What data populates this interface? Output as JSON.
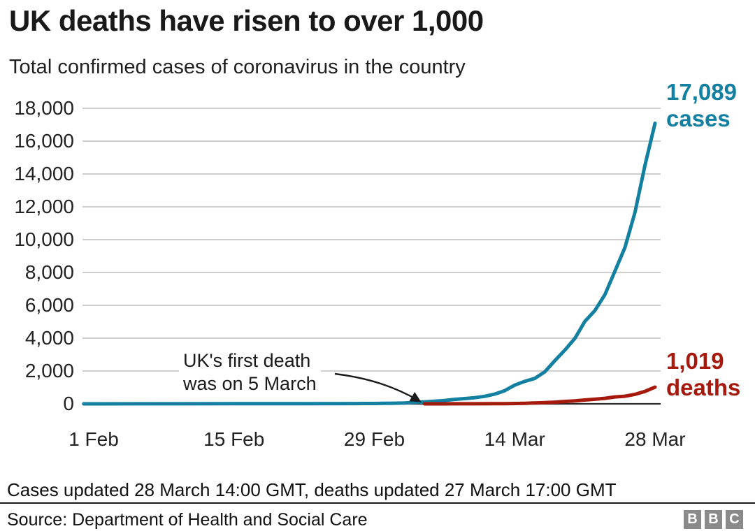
{
  "header": {
    "title": "UK deaths have risen to over 1,000",
    "subtitle": "Total confirmed cases of coronavirus in the country"
  },
  "chart_data": {
    "type": "line",
    "title": "UK deaths have risen to over 1,000",
    "subtitle": "Total confirmed cases of coronavirus in the country",
    "grid": "horizontal",
    "x_axis": {
      "tick_labels": [
        "1 Feb",
        "15 Feb",
        "29 Feb",
        "14 Mar",
        "28 Mar"
      ],
      "tick_days": [
        0,
        14,
        28,
        42,
        56
      ],
      "range_days": [
        0,
        56
      ]
    },
    "y_axis": {
      "tick_labels": [
        "18,000",
        "16,000",
        "14,000",
        "12,000",
        "10,000",
        "8,000",
        "6,000",
        "4,000",
        "2,000",
        "0"
      ],
      "tick_values": [
        18000,
        16000,
        14000,
        12000,
        10000,
        8000,
        6000,
        4000,
        2000,
        0
      ],
      "range": [
        0,
        18000
      ]
    },
    "series": [
      {
        "name": "cases",
        "color": "#1380a1",
        "end_label_value": "17,089",
        "end_label_name": "cases",
        "points": [
          [
            -1,
            2
          ],
          [
            0,
            2
          ],
          [
            7,
            3
          ],
          [
            14,
            9
          ],
          [
            21,
            13
          ],
          [
            26,
            15
          ],
          [
            27,
            20
          ],
          [
            28,
            23
          ],
          [
            29,
            36
          ],
          [
            30,
            40
          ],
          [
            31,
            51
          ],
          [
            32,
            87
          ],
          [
            33,
            115
          ],
          [
            34,
            163
          ],
          [
            35,
            206
          ],
          [
            36,
            273
          ],
          [
            37,
            321
          ],
          [
            38,
            373
          ],
          [
            39,
            456
          ],
          [
            40,
            590
          ],
          [
            41,
            798
          ],
          [
            42,
            1140
          ],
          [
            43,
            1372
          ],
          [
            44,
            1543
          ],
          [
            45,
            1950
          ],
          [
            46,
            2626
          ],
          [
            47,
            3269
          ],
          [
            48,
            3983
          ],
          [
            49,
            5018
          ],
          [
            50,
            5683
          ],
          [
            51,
            6650
          ],
          [
            52,
            8077
          ],
          [
            53,
            9529
          ],
          [
            54,
            11658
          ],
          [
            55,
            14543
          ],
          [
            56,
            17089
          ]
        ]
      },
      {
        "name": "deaths",
        "color": "#a6190d",
        "end_label_value": "1,019",
        "end_label_name": "deaths",
        "points": [
          [
            33,
            1
          ],
          [
            35,
            2
          ],
          [
            36,
            3
          ],
          [
            38,
            6
          ],
          [
            40,
            8
          ],
          [
            41,
            11
          ],
          [
            42,
            21
          ],
          [
            43,
            35
          ],
          [
            44,
            55
          ],
          [
            45,
            71
          ],
          [
            46,
            104
          ],
          [
            47,
            144
          ],
          [
            48,
            177
          ],
          [
            49,
            233
          ],
          [
            50,
            281
          ],
          [
            51,
            335
          ],
          [
            52,
            422
          ],
          [
            53,
            465
          ],
          [
            54,
            578
          ],
          [
            55,
            759
          ],
          [
            56,
            1019
          ]
        ]
      }
    ],
    "annotation": {
      "line1": "UK's first death",
      "line2": "was on 5 March",
      "arrow_to_day": 33
    }
  },
  "footer": {
    "updated": "Cases updated 28 March 14:00 GMT, deaths updated 27 March 17:00 GMT",
    "source": "Source: Department of Health and Social Care",
    "logo": [
      "B",
      "B",
      "C"
    ]
  },
  "colors": {
    "cases": "#1380a1",
    "deaths": "#a6190d",
    "grid": "#cfcfcf",
    "axis": "#2b2b2b",
    "text": "#222222",
    "logo_bg": "#8a8a8a",
    "arrow": "#1a1a1a"
  }
}
